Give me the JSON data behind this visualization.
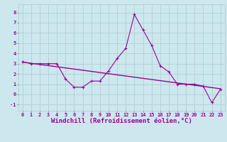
{
  "x": [
    0,
    1,
    2,
    3,
    4,
    5,
    6,
    7,
    8,
    9,
    10,
    11,
    12,
    13,
    14,
    15,
    16,
    17,
    18,
    19,
    20,
    21,
    22,
    23
  ],
  "y": [
    3.2,
    3.0,
    3.0,
    3.0,
    3.0,
    1.5,
    0.7,
    0.7,
    1.3,
    1.3,
    2.3,
    3.5,
    4.5,
    7.8,
    6.3,
    4.8,
    2.8,
    2.2,
    1.0,
    1.0,
    1.0,
    0.8,
    -0.8,
    0.5
  ],
  "trend_start_x": 0,
  "trend_start_y": 3.15,
  "trend_end_x": 23,
  "trend_end_y": 0.55,
  "xlim": [
    -0.5,
    23.5
  ],
  "ylim": [
    -1.6,
    8.8
  ],
  "yticks": [
    -1,
    0,
    1,
    2,
    3,
    4,
    5,
    6,
    7,
    8
  ],
  "xticks": [
    0,
    1,
    2,
    3,
    4,
    5,
    6,
    7,
    8,
    9,
    10,
    11,
    12,
    13,
    14,
    15,
    16,
    17,
    18,
    19,
    20,
    21,
    22,
    23
  ],
  "xlabel": "Windchill (Refroidissement éolien,°C)",
  "line_color": "#990099",
  "bg_color": "#cce8ee",
  "grid_color": "#aacccc",
  "tick_color": "#990099",
  "label_color": "#990099",
  "tick_font_size": 5.0,
  "label_font_size": 6.5,
  "line_width": 0.8,
  "marker_size": 3.0
}
